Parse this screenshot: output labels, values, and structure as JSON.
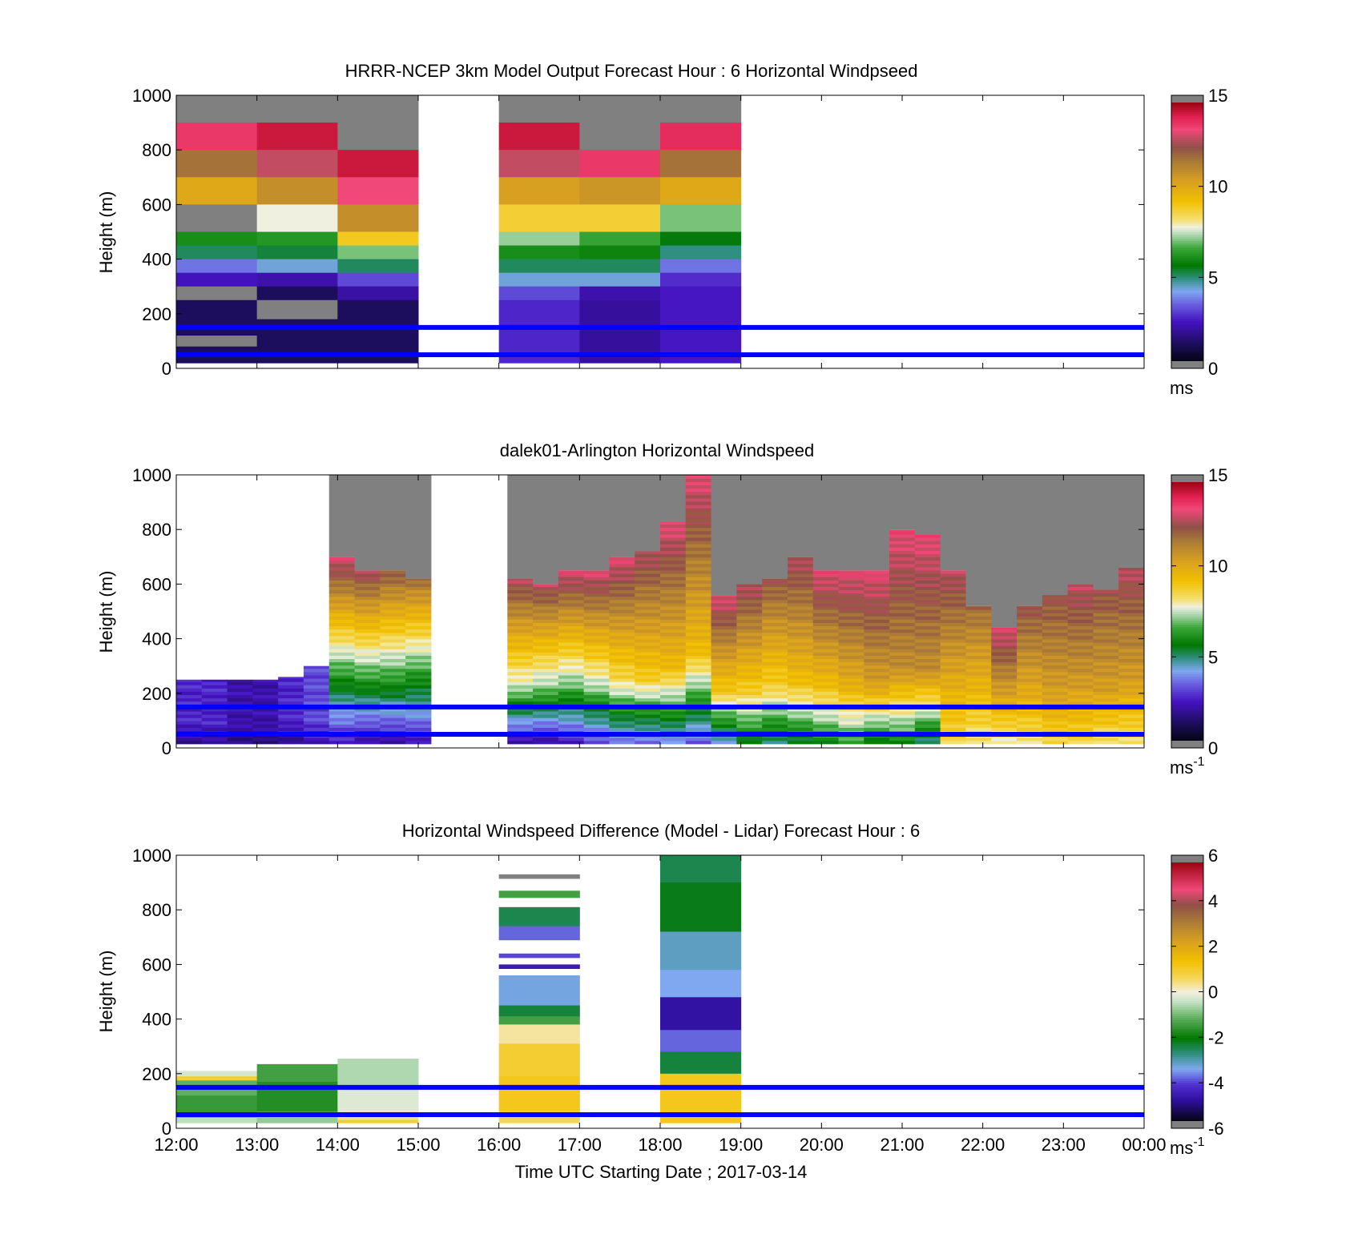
{
  "figure": {
    "xlabel": "Time UTC  Starting Date ; 2017-03-14"
  },
  "ref_line_color": "#0000ff",
  "chart_data": [
    {
      "type": "heatmap",
      "title": "HRRR-NCEP 3km Model Output   Forecast Hour : 6 Horizontal Windpseed",
      "ylabel": "Height (m)",
      "xlim": [
        "12:00",
        "00:00"
      ],
      "ylim": [
        0,
        1000
      ],
      "yticks": [
        "0",
        "200",
        "400",
        "600",
        "800",
        "1000"
      ],
      "xticks": [
        "12:00",
        "13:00",
        "14:00",
        "15:00",
        "16:00",
        "17:00",
        "18:00",
        "19:00",
        "20:00",
        "21:00",
        "22:00",
        "23:00",
        "00:00"
      ],
      "show_xtick_labels": false,
      "colorbar": {
        "min": 0,
        "max": 15,
        "ticks": [
          "0",
          "5",
          "10",
          "15"
        ],
        "unit": "ms",
        "unit_sup": ""
      },
      "reference_lines_m": [
        50,
        150
      ],
      "hours": [
        {
          "hour": "12:00",
          "bins": [
            {
              "top": 1000,
              "bottom": 900,
              "value": "nan"
            },
            {
              "top": 900,
              "bottom": 800,
              "value": 13.8
            },
            {
              "top": 800,
              "bottom": 700,
              "value": 11.8
            },
            {
              "top": 700,
              "bottom": 600,
              "value": 10.2
            },
            {
              "top": 600,
              "bottom": 500,
              "value": "nan"
            },
            {
              "top": 500,
              "bottom": 450,
              "value": 6.0
            },
            {
              "top": 450,
              "bottom": 400,
              "value": 5.0
            },
            {
              "top": 400,
              "bottom": 350,
              "value": 3.5
            },
            {
              "top": 350,
              "bottom": 300,
              "value": 2.2
            },
            {
              "top": 300,
              "bottom": 250,
              "value": "nan"
            },
            {
              "top": 250,
              "bottom": 120,
              "value": 1.0
            },
            {
              "top": 120,
              "bottom": 80,
              "value": "nan"
            },
            {
              "top": 80,
              "bottom": 20,
              "value": 1.0
            }
          ]
        },
        {
          "hour": "13:00",
          "bins": [
            {
              "top": 1000,
              "bottom": 900,
              "value": "nan"
            },
            {
              "top": 900,
              "bottom": 800,
              "value": 14.5
            },
            {
              "top": 800,
              "bottom": 700,
              "value": 13.0
            },
            {
              "top": 700,
              "bottom": 600,
              "value": 11.0
            },
            {
              "top": 600,
              "bottom": 500,
              "value": 7.8
            },
            {
              "top": 500,
              "bottom": 450,
              "value": 6.2
            },
            {
              "top": 450,
              "bottom": 400,
              "value": 5.2
            },
            {
              "top": 400,
              "bottom": 350,
              "value": 4.2
            },
            {
              "top": 350,
              "bottom": 300,
              "value": 2.0
            },
            {
              "top": 300,
              "bottom": 250,
              "value": 1.0
            },
            {
              "top": 250,
              "bottom": 180,
              "value": "nan"
            },
            {
              "top": 180,
              "bottom": 20,
              "value": 1.0
            }
          ]
        },
        {
          "hour": "14:00",
          "bins": [
            {
              "top": 1000,
              "bottom": 800,
              "value": "nan"
            },
            {
              "top": 800,
              "bottom": 700,
              "value": 14.5
            },
            {
              "top": 700,
              "bottom": 600,
              "value": 13.5
            },
            {
              "top": 600,
              "bottom": 500,
              "value": 11.0
            },
            {
              "top": 500,
              "bottom": 450,
              "value": 9.0
            },
            {
              "top": 450,
              "bottom": 400,
              "value": 7.0
            },
            {
              "top": 400,
              "bottom": 350,
              "value": 5.0
            },
            {
              "top": 350,
              "bottom": 300,
              "value": 3.0
            },
            {
              "top": 300,
              "bottom": 250,
              "value": 1.9
            },
            {
              "top": 250,
              "bottom": 20,
              "value": 1.0
            }
          ]
        },
        {
          "hour": "15:00",
          "bins": []
        },
        {
          "hour": "16:00",
          "bins": [
            {
              "top": 1000,
              "bottom": 900,
              "value": "nan"
            },
            {
              "top": 900,
              "bottom": 800,
              "value": 14.5
            },
            {
              "top": 800,
              "bottom": 700,
              "value": 13.0
            },
            {
              "top": 700,
              "bottom": 600,
              "value": 10.5
            },
            {
              "top": 600,
              "bottom": 500,
              "value": 8.8
            },
            {
              "top": 500,
              "bottom": 450,
              "value": 7.2
            },
            {
              "top": 450,
              "bottom": 400,
              "value": 6.0
            },
            {
              "top": 400,
              "bottom": 350,
              "value": 5.0
            },
            {
              "top": 350,
              "bottom": 300,
              "value": 4.2
            },
            {
              "top": 300,
              "bottom": 250,
              "value": 3.0
            },
            {
              "top": 250,
              "bottom": 20,
              "value": 2.5
            }
          ]
        },
        {
          "hour": "17:00",
          "bins": [
            {
              "top": 1000,
              "bottom": 800,
              "value": "nan"
            },
            {
              "top": 800,
              "bottom": 700,
              "value": 13.8
            },
            {
              "top": 700,
              "bottom": 600,
              "value": 10.8
            },
            {
              "top": 600,
              "bottom": 500,
              "value": 8.8
            },
            {
              "top": 500,
              "bottom": 450,
              "value": 6.5
            },
            {
              "top": 450,
              "bottom": 400,
              "value": 5.8
            },
            {
              "top": 400,
              "bottom": 350,
              "value": 5.0
            },
            {
              "top": 350,
              "bottom": 300,
              "value": 4.2
            },
            {
              "top": 300,
              "bottom": 250,
              "value": 2.0
            },
            {
              "top": 250,
              "bottom": 20,
              "value": 1.8
            }
          ]
        },
        {
          "hour": "18:00",
          "bins": [
            {
              "top": 1000,
              "bottom": 900,
              "value": "nan"
            },
            {
              "top": 900,
              "bottom": 800,
              "value": 14.0
            },
            {
              "top": 800,
              "bottom": 700,
              "value": 11.8
            },
            {
              "top": 700,
              "bottom": 600,
              "value": 10.2
            },
            {
              "top": 600,
              "bottom": 500,
              "value": 7.0
            },
            {
              "top": 500,
              "bottom": 450,
              "value": 5.5
            },
            {
              "top": 450,
              "bottom": 400,
              "value": 4.8
            },
            {
              "top": 400,
              "bottom": 350,
              "value": 3.5
            },
            {
              "top": 350,
              "bottom": 300,
              "value": 2.6
            },
            {
              "top": 300,
              "bottom": 20,
              "value": 2.3
            }
          ]
        }
      ]
    },
    {
      "type": "heatmap",
      "title": "dalek01-Arlington  Horizontal Windspeed",
      "ylabel": "Height (m)",
      "xlim": [
        "12:00",
        "00:00"
      ],
      "ylim": [
        0,
        1000
      ],
      "yticks": [
        "0",
        "200",
        "400",
        "600",
        "800",
        "1000"
      ],
      "xticks": [
        "12:00",
        "13:00",
        "14:00",
        "15:00",
        "16:00",
        "17:00",
        "18:00",
        "19:00",
        "20:00",
        "21:00",
        "22:00",
        "23:00",
        "00:00"
      ],
      "show_xtick_labels": false,
      "colorbar": {
        "min": 0,
        "max": 15,
        "ticks": [
          "0",
          "5",
          "10",
          "15"
        ],
        "unit": "ms",
        "unit_sup": "-1"
      },
      "reference_lines_m": [
        50,
        150
      ],
      "slot_minutes": 20,
      "profile_top_m": [
        250,
        250,
        250,
        250,
        260,
        300,
        700,
        650,
        650,
        620,
        0,
        0,
        0,
        620,
        600,
        650,
        650,
        700,
        720,
        830,
        1000,
        560,
        600,
        620,
        700,
        650,
        650,
        650,
        800,
        780,
        650,
        520,
        440,
        520,
        560,
        600,
        580,
        660
      ],
      "profile_wind_ms": [
        {
          "low": 1.5,
          "mid": 2.5,
          "high": 2.5
        },
        {
          "low": 1.5,
          "mid": 2.5,
          "high": 2.5
        },
        {
          "low": 1.2,
          "mid": 2.0,
          "high": 2.0
        },
        {
          "low": 1.2,
          "mid": 2.0,
          "high": 2.0
        },
        {
          "low": 1.5,
          "mid": 2.5,
          "high": 2.5
        },
        {
          "low": 2.0,
          "mid": 3.0,
          "high": 3.0
        },
        {
          "low": 2.0,
          "mid": 6.0,
          "high": 13.5
        },
        {
          "low": 1.5,
          "mid": 6.0,
          "high": 13.0
        },
        {
          "low": 1.5,
          "mid": 6.0,
          "high": 12.5
        },
        {
          "low": 2.0,
          "mid": 5.5,
          "high": 12.0
        },
        {
          "low": 0,
          "mid": 0,
          "high": 0
        },
        {
          "low": 0,
          "mid": 0,
          "high": 0
        },
        {
          "low": 0,
          "mid": 0,
          "high": 0
        },
        {
          "low": 1.5,
          "mid": 7.5,
          "high": 13.0
        },
        {
          "low": 1.5,
          "mid": 7.0,
          "high": 13.0
        },
        {
          "low": 2.0,
          "mid": 7.0,
          "high": 13.5
        },
        {
          "low": 2.5,
          "mid": 7.5,
          "high": 13.5
        },
        {
          "low": 3.0,
          "mid": 8.5,
          "high": 13.5
        },
        {
          "low": 3.0,
          "mid": 9.0,
          "high": 13.0
        },
        {
          "low": 3.5,
          "mid": 9.5,
          "high": 13.5
        },
        {
          "low": 3.0,
          "mid": 9.5,
          "high": 13.5
        },
        {
          "low": 3.5,
          "mid": 9.0,
          "high": 13.5
        },
        {
          "low": 5.0,
          "mid": 9.0,
          "high": 13.0
        },
        {
          "low": 4.5,
          "mid": 8.8,
          "high": 12.5
        },
        {
          "low": 5.0,
          "mid": 9.5,
          "high": 13.0
        },
        {
          "low": 5.5,
          "mid": 9.5,
          "high": 13.5
        },
        {
          "low": 6.0,
          "mid": 10.0,
          "high": 13.5
        },
        {
          "low": 5.0,
          "mid": 10.5,
          "high": 13.5
        },
        {
          "low": 5.5,
          "mid": 11.0,
          "high": 13.5
        },
        {
          "low": 4.5,
          "mid": 11.0,
          "high": 13.5
        },
        {
          "low": 8.5,
          "mid": 10.0,
          "high": 13.0
        },
        {
          "low": 8.0,
          "mid": 9.5,
          "high": 12.0
        },
        {
          "low": 7.5,
          "mid": 10.0,
          "high": 13.5
        },
        {
          "low": 8.0,
          "mid": 10.0,
          "high": 12.5
        },
        {
          "low": 8.5,
          "mid": 10.5,
          "high": 12.5
        },
        {
          "low": 8.5,
          "mid": 10.5,
          "high": 13.0
        },
        {
          "low": 8.0,
          "mid": 10.5,
          "high": 12.5
        },
        {
          "low": 8.0,
          "mid": 10.5,
          "high": 13.0
        }
      ]
    },
    {
      "type": "heatmap",
      "title": "Horizontal Windspeed Difference (Model - Lidar) Forecast Hour : 6",
      "ylabel": "Height (m)",
      "xlabel": "Time UTC  Starting Date ; 2017-03-14",
      "xlim": [
        "12:00",
        "00:00"
      ],
      "ylim": [
        0,
        1000
      ],
      "yticks": [
        "0",
        "200",
        "400",
        "600",
        "800",
        "1000"
      ],
      "xticks": [
        "12:00",
        "13:00",
        "14:00",
        "15:00",
        "16:00",
        "17:00",
        "18:00",
        "19:00",
        "20:00",
        "21:00",
        "22:00",
        "23:00",
        "00:00"
      ],
      "show_xtick_labels": true,
      "colorbar": {
        "min": -6,
        "max": 6,
        "ticks": [
          "-6",
          "-4",
          "-2",
          "0",
          "2",
          "4",
          "6"
        ],
        "unit": "ms",
        "unit_sup": "-1"
      },
      "reference_lines_m": [
        50,
        150
      ],
      "hours": [
        {
          "hour": "12:00",
          "bins": [
            {
              "top": 210,
              "bottom": 190,
              "value": -0.3
            },
            {
              "top": 190,
              "bottom": 175,
              "value": 1.0
            },
            {
              "top": 175,
              "bottom": 120,
              "value": -1.2
            },
            {
              "top": 120,
              "bottom": 40,
              "value": -1.6
            },
            {
              "top": 40,
              "bottom": 20,
              "value": -0.5
            }
          ]
        },
        {
          "hour": "13:00",
          "bins": [
            {
              "top": 235,
              "bottom": 170,
              "value": -1.5
            },
            {
              "top": 170,
              "bottom": 60,
              "value": -1.8
            },
            {
              "top": 60,
              "bottom": 20,
              "value": -0.8
            }
          ]
        },
        {
          "hour": "14:00",
          "bins": [
            {
              "top": 255,
              "bottom": 140,
              "value": -0.6
            },
            {
              "top": 140,
              "bottom": 60,
              "value": -0.2
            },
            {
              "top": 60,
              "bottom": 30,
              "value": 0.4
            },
            {
              "top": 30,
              "bottom": 20,
              "value": 1.0
            }
          ]
        },
        {
          "hour": "15:00",
          "bins": []
        },
        {
          "hour": "16:00",
          "bins": [
            {
              "top": 930,
              "bottom": 915,
              "value": "nan"
            },
            {
              "top": 870,
              "bottom": 845,
              "value": -1.5
            },
            {
              "top": 810,
              "bottom": 740,
              "value": -2.6
            },
            {
              "top": 740,
              "bottom": 690,
              "value": -4.0
            },
            {
              "top": 640,
              "bottom": 625,
              "value": -4.2
            },
            {
              "top": 600,
              "bottom": 585,
              "value": -4.8
            },
            {
              "top": 560,
              "bottom": 450,
              "value": -3.5
            },
            {
              "top": 450,
              "bottom": 410,
              "value": -2.5
            },
            {
              "top": 410,
              "bottom": 380,
              "value": -1.5
            },
            {
              "top": 380,
              "bottom": 310,
              "value": 0.3
            },
            {
              "top": 310,
              "bottom": 190,
              "value": 1.0
            },
            {
              "top": 190,
              "bottom": 60,
              "value": 1.2
            },
            {
              "top": 60,
              "bottom": 20,
              "value": 0.7
            }
          ]
        },
        {
          "hour": "17:00",
          "bins": []
        },
        {
          "hour": "18:00",
          "bins": [
            {
              "top": 1000,
              "bottom": 900,
              "value": -2.6
            },
            {
              "top": 900,
              "bottom": 720,
              "value": -2.3
            },
            {
              "top": 720,
              "bottom": 580,
              "value": -3.3
            },
            {
              "top": 580,
              "bottom": 480,
              "value": -3.6
            },
            {
              "top": 480,
              "bottom": 360,
              "value": -5.0
            },
            {
              "top": 360,
              "bottom": 280,
              "value": -4.0
            },
            {
              "top": 280,
              "bottom": 200,
              "value": -2.5
            },
            {
              "top": 200,
              "bottom": 20,
              "value": 1.2
            }
          ]
        }
      ]
    }
  ]
}
